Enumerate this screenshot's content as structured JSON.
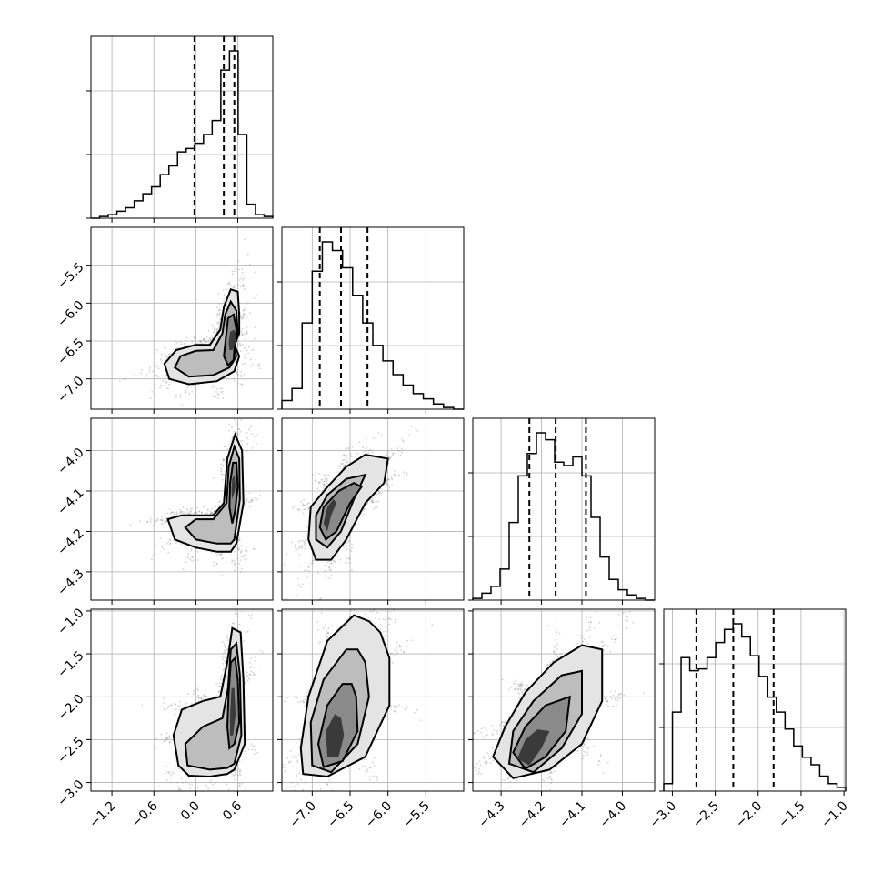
{
  "chart_data": {
    "type": "corner",
    "title": "",
    "params": [
      {
        "range": [
          -1.5,
          1.1
        ],
        "ticks": [
          -1.2,
          -0.6,
          0.0,
          0.6
        ],
        "tick_labels": [
          "−1.2",
          "−0.6",
          "0.0",
          "0.6"
        ],
        "quantiles": [
          -0.02,
          0.4,
          0.55
        ],
        "mode": 0.55,
        "hist": [
          0.0,
          0.01,
          0.02,
          0.04,
          0.06,
          0.1,
          0.14,
          0.18,
          0.25,
          0.3,
          0.38,
          0.4,
          0.43,
          0.48,
          0.56,
          0.85,
          0.96,
          0.48,
          0.08,
          0.02,
          0.01
        ]
      },
      {
        "range": [
          -7.4,
          -5.0
        ],
        "ticks": [
          -7.0,
          -6.5,
          -6.0,
          -5.5
        ],
        "tick_labels": [
          "−7.0",
          "−6.5",
          "−6.0",
          "−5.5"
        ],
        "quantiles": [
          -6.9,
          -6.62,
          -6.27
        ],
        "mode": -6.72,
        "hist": [
          0.05,
          0.12,
          0.5,
          0.8,
          0.97,
          0.92,
          0.82,
          0.66,
          0.5,
          0.37,
          0.28,
          0.2,
          0.14,
          0.09,
          0.06,
          0.03,
          0.01,
          0.0
        ]
      },
      {
        "range": [
          -4.37,
          -3.92
        ],
        "ticks": [
          -4.3,
          -4.2,
          -4.1,
          -4.0
        ],
        "tick_labels": [
          "−4.3",
          "−4.2",
          "−4.1",
          "−4.0"
        ],
        "quantiles": [
          -4.23,
          -4.165,
          -4.09
        ],
        "mode": -4.2,
        "hist": [
          0.01,
          0.04,
          0.08,
          0.18,
          0.45,
          0.72,
          0.85,
          0.97,
          0.93,
          0.8,
          0.78,
          0.83,
          0.72,
          0.48,
          0.25,
          0.12,
          0.06,
          0.03,
          0.01,
          0.0
        ]
      },
      {
        "range": [
          -3.1,
          -0.98
        ],
        "ticks": [
          -3.0,
          -2.5,
          -2.0,
          -1.5,
          -1.0
        ],
        "tick_labels": [
          "−3.0",
          "−2.5",
          "−2.0",
          "−1.5",
          "−1.0"
        ],
        "quantiles": [
          -2.72,
          -2.29,
          -1.82
        ],
        "mode": -2.25,
        "hist": [
          0.04,
          0.42,
          0.71,
          0.64,
          0.65,
          0.71,
          0.79,
          0.86,
          0.89,
          0.82,
          0.72,
          0.61,
          0.5,
          0.42,
          0.33,
          0.24,
          0.18,
          0.14,
          0.08,
          0.04,
          0.02
        ]
      }
    ],
    "pairs": [
      {
        "row": 1,
        "col": 0,
        "rings": [
          [
            [
              0.55,
              -6.55
            ],
            [
              0.62,
              -6.4
            ],
            [
              0.62,
              -6.15
            ],
            [
              0.6,
              -5.85
            ],
            [
              0.5,
              -5.82
            ],
            [
              0.4,
              -6.05
            ],
            [
              0.35,
              -6.35
            ],
            [
              0.2,
              -6.55
            ],
            [
              0.0,
              -6.55
            ],
            [
              -0.28,
              -6.62
            ],
            [
              -0.45,
              -6.8
            ],
            [
              -0.38,
              -7.0
            ],
            [
              -0.1,
              -7.07
            ],
            [
              0.3,
              -7.03
            ],
            [
              0.55,
              -6.9
            ],
            [
              0.62,
              -6.7
            ]
          ],
          [
            [
              0.55,
              -6.6
            ],
            [
              0.6,
              -6.4
            ],
            [
              0.58,
              -6.1
            ],
            [
              0.5,
              -5.98
            ],
            [
              0.42,
              -6.15
            ],
            [
              0.38,
              -6.4
            ],
            [
              0.25,
              -6.62
            ],
            [
              0.0,
              -6.63
            ],
            [
              -0.22,
              -6.7
            ],
            [
              -0.3,
              -6.85
            ],
            [
              -0.1,
              -6.97
            ],
            [
              0.25,
              -6.95
            ],
            [
              0.48,
              -6.85
            ],
            [
              0.58,
              -6.7
            ]
          ],
          [
            [
              0.55,
              -6.6
            ],
            [
              0.58,
              -6.35
            ],
            [
              0.54,
              -6.15
            ],
            [
              0.46,
              -6.2
            ],
            [
              0.43,
              -6.45
            ],
            [
              0.4,
              -6.7
            ],
            [
              0.46,
              -6.82
            ],
            [
              0.54,
              -6.75
            ]
          ],
          [
            [
              0.52,
              -6.62
            ],
            [
              0.58,
              -6.5
            ],
            [
              0.55,
              -6.35
            ],
            [
              0.49,
              -6.38
            ],
            [
              0.47,
              -6.52
            ],
            [
              0.48,
              -6.62
            ]
          ]
        ]
      },
      {
        "row": 2,
        "col": 0,
        "rings": [
          [
            [
              0.58,
              -4.23
            ],
            [
              0.68,
              -4.13
            ],
            [
              0.66,
              -4.0
            ],
            [
              0.56,
              -3.96
            ],
            [
              0.45,
              -4.02
            ],
            [
              0.4,
              -4.13
            ],
            [
              0.25,
              -4.16
            ],
            [
              0.0,
              -4.16
            ],
            [
              -0.2,
              -4.16
            ],
            [
              -0.4,
              -4.17
            ],
            [
              -0.3,
              -4.22
            ],
            [
              0.0,
              -4.24
            ],
            [
              0.3,
              -4.25
            ],
            [
              0.5,
              -4.25
            ]
          ],
          [
            [
              0.55,
              -4.22
            ],
            [
              0.63,
              -4.12
            ],
            [
              0.62,
              -4.02
            ],
            [
              0.55,
              -3.99
            ],
            [
              0.47,
              -4.04
            ],
            [
              0.44,
              -4.13
            ],
            [
              0.25,
              -4.17
            ],
            [
              0.0,
              -4.17
            ],
            [
              -0.15,
              -4.19
            ],
            [
              0.0,
              -4.22
            ],
            [
              0.3,
              -4.23
            ],
            [
              0.5,
              -4.23
            ]
          ],
          [
            [
              0.56,
              -4.15
            ],
            [
              0.6,
              -4.09
            ],
            [
              0.58,
              -4.03
            ],
            [
              0.53,
              -4.03
            ],
            [
              0.49,
              -4.08
            ],
            [
              0.48,
              -4.14
            ],
            [
              0.52,
              -4.18
            ]
          ],
          [
            [
              0.54,
              -4.11
            ],
            [
              0.57,
              -4.09
            ],
            [
              0.55,
              -4.06
            ],
            [
              0.52,
              -4.07
            ],
            [
              0.51,
              -4.1
            ],
            [
              0.52,
              -4.12
            ]
          ]
        ]
      },
      {
        "row": 3,
        "col": 0,
        "rings": [
          [
            [
              0.55,
              -2.85
            ],
            [
              0.7,
              -2.55
            ],
            [
              0.68,
              -1.8
            ],
            [
              0.64,
              -1.25
            ],
            [
              0.52,
              -1.2
            ],
            [
              0.45,
              -1.6
            ],
            [
              0.35,
              -2.0
            ],
            [
              0.1,
              -2.05
            ],
            [
              -0.2,
              -2.15
            ],
            [
              -0.32,
              -2.45
            ],
            [
              -0.25,
              -2.8
            ],
            [
              -0.1,
              -2.92
            ],
            [
              0.2,
              -2.93
            ],
            [
              0.45,
              -2.9
            ]
          ],
          [
            [
              0.55,
              -2.78
            ],
            [
              0.65,
              -2.45
            ],
            [
              0.63,
              -1.75
            ],
            [
              0.58,
              -1.38
            ],
            [
              0.5,
              -1.45
            ],
            [
              0.46,
              -1.9
            ],
            [
              0.38,
              -2.25
            ],
            [
              0.1,
              -2.35
            ],
            [
              -0.15,
              -2.55
            ],
            [
              -0.12,
              -2.8
            ],
            [
              0.2,
              -2.85
            ],
            [
              0.45,
              -2.83
            ]
          ],
          [
            [
              0.55,
              -2.55
            ],
            [
              0.62,
              -2.3
            ],
            [
              0.6,
              -1.8
            ],
            [
              0.56,
              -1.55
            ],
            [
              0.5,
              -1.6
            ],
            [
              0.47,
              -1.95
            ],
            [
              0.45,
              -2.35
            ],
            [
              0.48,
              -2.6
            ]
          ],
          [
            [
              0.53,
              -2.45
            ],
            [
              0.57,
              -2.2
            ],
            [
              0.55,
              -1.9
            ],
            [
              0.51,
              -1.9
            ],
            [
              0.49,
              -2.2
            ],
            [
              0.49,
              -2.45
            ]
          ]
        ]
      },
      {
        "row": 2,
        "col": 1,
        "rings": [
          [
            [
              -6.0,
              -4.02
            ],
            [
              -6.05,
              -4.08
            ],
            [
              -6.3,
              -4.13
            ],
            [
              -6.55,
              -4.22
            ],
            [
              -6.75,
              -4.27
            ],
            [
              -6.95,
              -4.27
            ],
            [
              -7.05,
              -4.22
            ],
            [
              -7.02,
              -4.14
            ],
            [
              -6.8,
              -4.09
            ],
            [
              -6.55,
              -4.04
            ],
            [
              -6.3,
              -4.01
            ]
          ],
          [
            [
              -6.3,
              -4.06
            ],
            [
              -6.45,
              -4.12
            ],
            [
              -6.62,
              -4.2
            ],
            [
              -6.8,
              -4.24
            ],
            [
              -6.95,
              -4.22
            ],
            [
              -6.95,
              -4.16
            ],
            [
              -6.8,
              -4.11
            ],
            [
              -6.55,
              -4.07
            ]
          ],
          [
            [
              -6.35,
              -4.09
            ],
            [
              -6.5,
              -4.13
            ],
            [
              -6.68,
              -4.2
            ],
            [
              -6.82,
              -4.22
            ],
            [
              -6.9,
              -4.19
            ],
            [
              -6.85,
              -4.14
            ],
            [
              -6.65,
              -4.1
            ],
            [
              -6.45,
              -4.08
            ]
          ],
          [
            [
              -6.68,
              -4.13
            ],
            [
              -6.75,
              -4.16
            ],
            [
              -6.8,
              -4.2
            ],
            [
              -6.85,
              -4.18
            ],
            [
              -6.8,
              -4.14
            ],
            [
              -6.72,
              -4.12
            ]
          ]
        ]
      },
      {
        "row": 3,
        "col": 1,
        "rings": [
          [
            [
              -6.45,
              -1.05
            ],
            [
              -6.8,
              -1.35
            ],
            [
              -7.05,
              -2.0
            ],
            [
              -7.15,
              -2.6
            ],
            [
              -7.12,
              -2.9
            ],
            [
              -6.8,
              -2.93
            ],
            [
              -6.3,
              -2.7
            ],
            [
              -5.98,
              -2.1
            ],
            [
              -5.98,
              -1.55
            ],
            [
              -6.1,
              -1.25
            ],
            [
              -6.25,
              -1.12
            ]
          ],
          [
            [
              -6.55,
              -1.45
            ],
            [
              -6.85,
              -1.8
            ],
            [
              -7.02,
              -2.3
            ],
            [
              -7.0,
              -2.8
            ],
            [
              -6.75,
              -2.88
            ],
            [
              -6.4,
              -2.55
            ],
            [
              -6.25,
              -2.0
            ],
            [
              -6.3,
              -1.6
            ],
            [
              -6.4,
              -1.45
            ]
          ],
          [
            [
              -6.6,
              -1.85
            ],
            [
              -6.8,
              -2.1
            ],
            [
              -6.92,
              -2.55
            ],
            [
              -6.85,
              -2.82
            ],
            [
              -6.6,
              -2.75
            ],
            [
              -6.4,
              -2.4
            ],
            [
              -6.42,
              -2.0
            ],
            [
              -6.48,
              -1.85
            ]
          ],
          [
            [
              -6.7,
              -2.2
            ],
            [
              -6.82,
              -2.4
            ],
            [
              -6.8,
              -2.7
            ],
            [
              -6.65,
              -2.7
            ],
            [
              -6.58,
              -2.45
            ],
            [
              -6.62,
              -2.25
            ]
          ]
        ]
      },
      {
        "row": 3,
        "col": 2,
        "rings": [
          [
            [
              -4.05,
              -1.45
            ],
            [
              -4.05,
              -2.05
            ],
            [
              -4.1,
              -2.55
            ],
            [
              -4.18,
              -2.85
            ],
            [
              -4.27,
              -2.95
            ],
            [
              -4.32,
              -2.7
            ],
            [
              -4.29,
              -2.35
            ],
            [
              -4.24,
              -1.95
            ],
            [
              -4.17,
              -1.6
            ],
            [
              -4.1,
              -1.4
            ]
          ],
          [
            [
              -4.1,
              -1.7
            ],
            [
              -4.1,
              -2.2
            ],
            [
              -4.15,
              -2.6
            ],
            [
              -4.22,
              -2.88
            ],
            [
              -4.28,
              -2.78
            ],
            [
              -4.27,
              -2.4
            ],
            [
              -4.22,
              -2.05
            ],
            [
              -4.15,
              -1.75
            ]
          ],
          [
            [
              -4.13,
              -2.0
            ],
            [
              -4.14,
              -2.4
            ],
            [
              -4.19,
              -2.7
            ],
            [
              -4.24,
              -2.84
            ],
            [
              -4.27,
              -2.65
            ],
            [
              -4.24,
              -2.35
            ],
            [
              -4.19,
              -2.1
            ]
          ],
          [
            [
              -4.18,
              -2.4
            ],
            [
              -4.2,
              -2.6
            ],
            [
              -4.23,
              -2.8
            ],
            [
              -4.26,
              -2.72
            ],
            [
              -4.24,
              -2.5
            ],
            [
              -4.21,
              -2.38
            ]
          ]
        ]
      }
    ],
    "grid": true,
    "colors": {
      "line": "#000000",
      "grid": "#b0b0b0",
      "scatter": "#808080"
    }
  }
}
